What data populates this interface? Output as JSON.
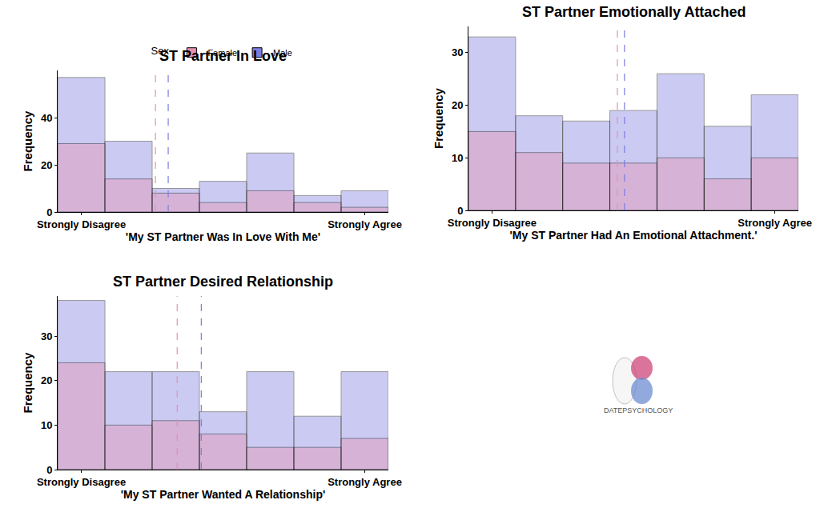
{
  "chart_data": [
    {
      "type": "histogram",
      "title": "ST Partner In Love",
      "x_label": "'My ST Partner Was In Love With Me'",
      "y_label": "Frequency",
      "bins": [
        0.5,
        1.5,
        2.5,
        3.5,
        4.5,
        5.5,
        6.5,
        7.5
      ],
      "xlim": [
        0.5,
        7.5
      ],
      "xticks": [
        {
          "value": 1,
          "label": "Strongly Disagree"
        },
        {
          "value": 7,
          "label": "Strongly Agree"
        }
      ],
      "ylim": [
        0,
        60
      ],
      "yticks": [
        0,
        20,
        40
      ],
      "grid": false,
      "legend": "top",
      "legend_title": "Sex",
      "series": [
        {
          "name": "Female",
          "color": "#e890b0",
          "values": [
            29,
            14,
            8,
            4,
            9,
            4,
            2
          ],
          "mean": 2.57
        },
        {
          "name": "Male",
          "color": "#7d7de1",
          "values": [
            57,
            30,
            10,
            13,
            25,
            7,
            9
          ],
          "mean": 2.84
        }
      ]
    },
    {
      "type": "histogram",
      "title": "ST Partner Emotionally Attached",
      "x_label": "'My ST Partner Had An Emotional Attachment.'",
      "y_label": "Frequency",
      "bins": [
        0.5,
        1.5,
        2.5,
        3.5,
        4.5,
        5.5,
        6.5,
        7.5
      ],
      "xlim": [
        0.5,
        7.5
      ],
      "xticks": [
        {
          "value": 1,
          "label": "Strongly Disagree"
        },
        {
          "value": 7,
          "label": "Strongly Agree"
        }
      ],
      "ylim": [
        0,
        35
      ],
      "yticks": [
        0,
        10,
        20,
        30
      ],
      "grid": false,
      "series": [
        {
          "name": "Female",
          "color": "#e890b0",
          "values": [
            15,
            11,
            9,
            9,
            10,
            6,
            10
          ],
          "mean": 3.66
        },
        {
          "name": "Male",
          "color": "#7d7de1",
          "values": [
            33,
            18,
            17,
            19,
            26,
            16,
            22
          ],
          "mean": 3.81
        }
      ]
    },
    {
      "type": "histogram",
      "title": "ST Partner Desired Relationship",
      "x_label": "'My ST Partner Wanted A Relationship'",
      "y_label": "Frequency",
      "bins": [
        0.5,
        1.5,
        2.5,
        3.5,
        4.5,
        5.5,
        6.5,
        7.5
      ],
      "xlim": [
        0.5,
        7.5
      ],
      "xticks": [
        {
          "value": 1,
          "label": "Strongly Disagree"
        },
        {
          "value": 7,
          "label": "Strongly Agree"
        }
      ],
      "ylim": [
        0,
        39
      ],
      "yticks": [
        0,
        10,
        20,
        30
      ],
      "grid": false,
      "series": [
        {
          "name": "Female",
          "color": "#e890b0",
          "values": [
            24,
            10,
            11,
            8,
            5,
            5,
            7
          ],
          "mean": 3.03
        },
        {
          "name": "Male",
          "color": "#7d7de1",
          "values": [
            38,
            22,
            22,
            13,
            22,
            12,
            22
          ],
          "mean": 3.54
        }
      ]
    }
  ],
  "watermark": "DATEPSYCHOLOGY"
}
